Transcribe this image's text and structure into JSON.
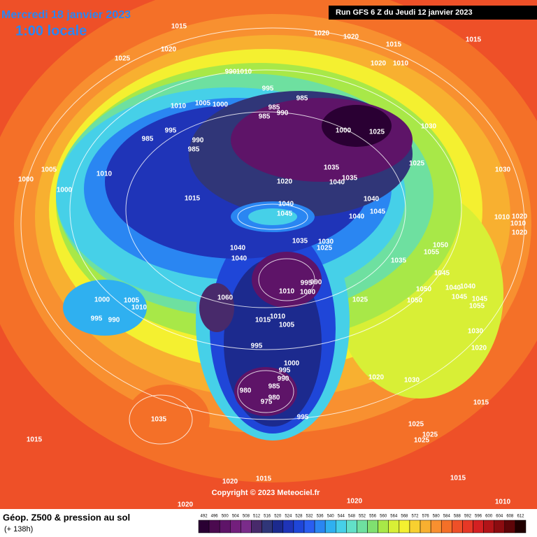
{
  "header": {
    "date": "Mercredi 18 janvier 2023",
    "time": "1:00 locale",
    "run": "Run GFS 6 Z du Jeudi 12 janvier 2023"
  },
  "footer": {
    "title": "Géop. Z500 & pression au sol",
    "lead": "(+ 138h)",
    "copyright": "Copyright © 2023 Meteociel.fr"
  },
  "colorbar": {
    "values": [
      492,
      496,
      500,
      504,
      508,
      512,
      516,
      520,
      524,
      528,
      532,
      536,
      540,
      544,
      548,
      552,
      556,
      560,
      564,
      568,
      572,
      576,
      580,
      584,
      588,
      592,
      596,
      600,
      604,
      608,
      612
    ],
    "colors": [
      "#2a0033",
      "#4b0a4f",
      "#5e1468",
      "#731f7c",
      "#7a2c8a",
      "#482a6b",
      "#303678",
      "#1c2a8e",
      "#1f34b8",
      "#1f46d8",
      "#2a5ef0",
      "#2a86f2",
      "#2fb0f0",
      "#46d0e8",
      "#62e0c8",
      "#6ee0a0",
      "#80e070",
      "#a8e848",
      "#d8ef36",
      "#f4f030",
      "#f8d030",
      "#f8b030",
      "#f89030",
      "#f47028",
      "#ee5028",
      "#e63826",
      "#d42022",
      "#b21418",
      "#8c0c10",
      "#5e0508",
      "#200000"
    ]
  },
  "pressure_labels": [
    1015,
    1020,
    1020,
    1015,
    1015,
    1020,
    1025,
    1020,
    1010,
    990,
    1010,
    995,
    985,
    1010,
    1005,
    1000,
    985,
    990,
    985,
    1000,
    1025,
    1030,
    995,
    985,
    990,
    985,
    1005,
    1010,
    1000,
    1000,
    1035,
    1035,
    1040,
    1025,
    1030,
    1020,
    1015,
    1040,
    1045,
    1040,
    1045,
    1040,
    1010,
    1020,
    1010,
    1020,
    1035,
    1030,
    1025,
    1050,
    1055,
    1040,
    1040,
    1035,
    1045,
    995,
    990,
    1010,
    1000,
    1050,
    1040,
    1040,
    1045,
    1045,
    1055,
    1000,
    1005,
    1010,
    1025,
    1050,
    1060,
    1015,
    1010,
    1005,
    995,
    990,
    1030,
    995,
    1000,
    995,
    990,
    1020,
    1030,
    985,
    980,
    980,
    975,
    1020,
    995,
    1015,
    1035,
    1025,
    1025,
    1025,
    1015,
    1015,
    1020,
    1020,
    1020,
    1010,
    1015
  ]
}
